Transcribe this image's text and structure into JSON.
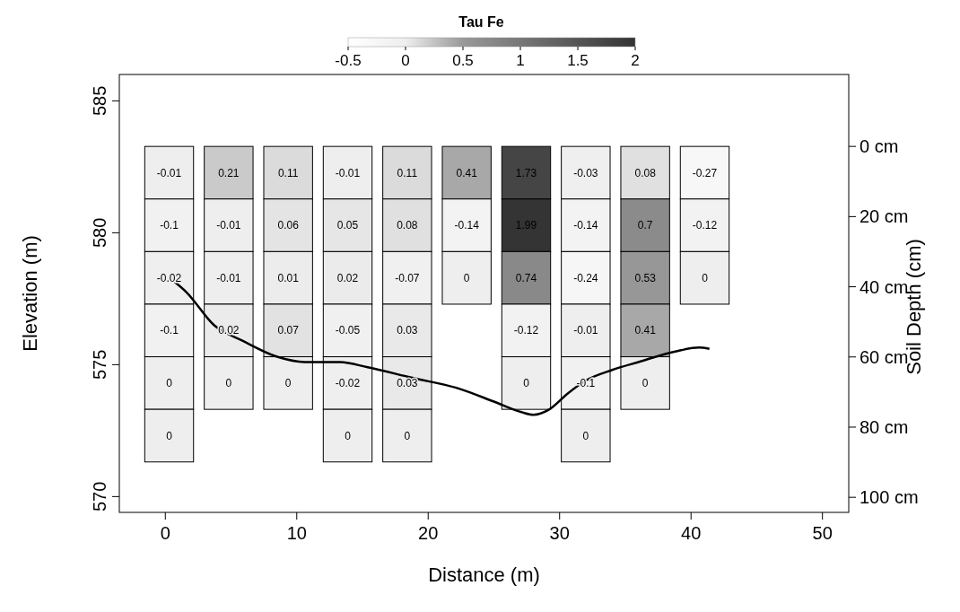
{
  "chart_data": [
    {
      "type": "line",
      "xlabel": "Distance (m)",
      "ylabel": "Elevation (m)",
      "y2label": "Soil Depth (cm)",
      "x": [
        0.55,
        1.6,
        3.7,
        5.9,
        8.5,
        10.6,
        13.3,
        15.4,
        18.8,
        22.3,
        25,
        27.1,
        28,
        29.2,
        30.6,
        32,
        34,
        36,
        38.8,
        40.6,
        41.4
      ],
      "series": [
        {
          "color": "#000000",
          "values": [
            578.2,
            577.75,
            576.5,
            575.9,
            575.3,
            575.1,
            575.1,
            574.9,
            574.5,
            574.1,
            573.6,
            573.2,
            573.1,
            573.3,
            573.9,
            574.4,
            574.8,
            575.1,
            575.5,
            575.65,
            575.6
          ]
        }
      ],
      "xlim": [
        -3.5,
        52
      ],
      "xticks": [
        0,
        10,
        20,
        30,
        40,
        50
      ],
      "ylim": [
        569.4,
        586
      ],
      "yticks": [
        570,
        575,
        580,
        585
      ],
      "y2lim": [
        104.3,
        -20.5
      ],
      "y2ticks": [
        {
          "value": 0,
          "label": "0 cm"
        },
        {
          "value": 20,
          "label": "20 cm"
        },
        {
          "value": 40,
          "label": "40 cm"
        },
        {
          "value": 60,
          "label": "60 cm"
        },
        {
          "value": 80,
          "label": "80 cm"
        },
        {
          "value": 100,
          "label": "100 cm"
        }
      ],
      "grid": false,
      "marker": "none"
    },
    {
      "type": "heatmap",
      "clabel": "Tau Fe",
      "categories": [
        null,
        null,
        null,
        null,
        null,
        null,
        null,
        null,
        null,
        null
      ],
      "y_categories": [
        null,
        null,
        null,
        null,
        null,
        null
      ],
      "cells": [
        [
          -0.01,
          0.21,
          0.11,
          -0.01,
          0.11,
          0.41,
          1.73,
          -0.03,
          0.08,
          -0.27
        ],
        [
          -0.1,
          -0.01,
          0.06,
          0.05,
          0.08,
          -0.14,
          1.99,
          -0.14,
          0.7,
          -0.12
        ],
        [
          -0.02,
          -0.01,
          0.01,
          0.02,
          -0.07,
          0,
          0.74,
          -0.24,
          0.53,
          0
        ],
        [
          -0.1,
          0.02,
          0.07,
          -0.05,
          0.03,
          null,
          -0.12,
          -0.01,
          0.41,
          null
        ],
        [
          0,
          0,
          0,
          -0.02,
          0.03,
          null,
          0,
          -0.1,
          0,
          null
        ],
        [
          0,
          null,
          null,
          0,
          0,
          null,
          null,
          0,
          null,
          null
        ]
      ],
      "data_labels": true,
      "clim": [
        -0.5,
        2
      ],
      "cticks": [
        -0.5,
        0,
        0.5,
        1,
        1.5,
        2
      ]
    }
  ]
}
